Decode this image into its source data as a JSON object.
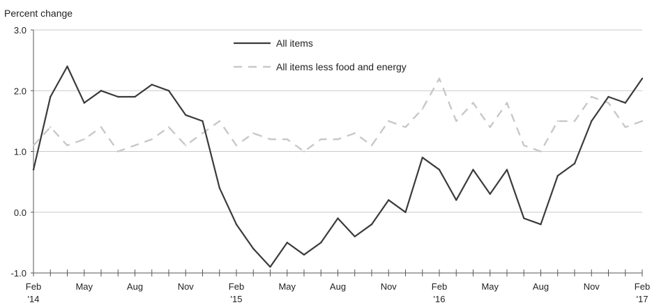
{
  "chart_data": {
    "type": "line",
    "title": "",
    "ylabel": "Percent change",
    "xlabel": "",
    "ylim": [
      -1.0,
      3.0
    ],
    "yticks": [
      "3.0",
      "2.0",
      "1.0",
      "0.0",
      "-1.0"
    ],
    "ytick_values": [
      3.0,
      2.0,
      1.0,
      0.0,
      -1.0
    ],
    "xtick_labels": [
      {
        "index": 0,
        "month": "Feb",
        "year": "'14"
      },
      {
        "index": 3,
        "month": "May",
        "year": ""
      },
      {
        "index": 6,
        "month": "Aug",
        "year": ""
      },
      {
        "index": 9,
        "month": "Nov",
        "year": ""
      },
      {
        "index": 12,
        "month": "Feb",
        "year": "'15"
      },
      {
        "index": 15,
        "month": "May",
        "year": ""
      },
      {
        "index": 18,
        "month": "Aug",
        "year": ""
      },
      {
        "index": 21,
        "month": "Nov",
        "year": ""
      },
      {
        "index": 24,
        "month": "Feb",
        "year": "'16"
      },
      {
        "index": 27,
        "month": "May",
        "year": ""
      },
      {
        "index": 30,
        "month": "Aug",
        "year": ""
      },
      {
        "index": 33,
        "month": "Nov",
        "year": ""
      },
      {
        "index": 36,
        "month": "Feb",
        "year": "'17"
      }
    ],
    "x": [
      "Feb 2014",
      "Mar 2014",
      "Apr 2014",
      "May 2014",
      "Jun 2014",
      "Jul 2014",
      "Aug 2014",
      "Sep 2014",
      "Oct 2014",
      "Nov 2014",
      "Dec 2014",
      "Jan 2015",
      "Feb 2015",
      "Mar 2015",
      "Apr 2015",
      "May 2015",
      "Jun 2015",
      "Jul 2015",
      "Aug 2015",
      "Sep 2015",
      "Oct 2015",
      "Nov 2015",
      "Dec 2015",
      "Jan 2016",
      "Feb 2016",
      "Mar 2016",
      "Apr 2016",
      "May 2016",
      "Jun 2016",
      "Jul 2016",
      "Aug 2016",
      "Sep 2016",
      "Oct 2016",
      "Nov 2016",
      "Dec 2016",
      "Jan 2017",
      "Feb 2017"
    ],
    "grid": true,
    "legend_position": "top-center",
    "series": [
      {
        "name": "All items",
        "style": "solid",
        "color": "#3a3a3a",
        "values": [
          0.7,
          1.9,
          2.4,
          1.8,
          2.0,
          1.9,
          1.9,
          2.1,
          2.0,
          1.6,
          1.5,
          0.4,
          -0.2,
          -0.6,
          -0.9,
          -0.5,
          -0.7,
          -0.5,
          -0.1,
          -0.4,
          -0.2,
          0.2,
          0.0,
          0.9,
          0.7,
          0.2,
          0.7,
          0.3,
          0.7,
          -0.1,
          -0.2,
          0.6,
          0.8,
          1.5,
          1.9,
          1.8,
          2.2
        ]
      },
      {
        "name": "All items less food and energy",
        "style": "dashed",
        "color": "#c8c8c8",
        "values": [
          1.1,
          1.4,
          1.1,
          1.2,
          1.4,
          1.0,
          1.1,
          1.2,
          1.4,
          1.1,
          1.3,
          1.5,
          1.1,
          1.3,
          1.2,
          1.2,
          1.0,
          1.2,
          1.2,
          1.3,
          1.1,
          1.5,
          1.4,
          1.7,
          2.2,
          1.5,
          1.8,
          1.4,
          1.8,
          1.1,
          1.0,
          1.5,
          1.5,
          1.9,
          1.8,
          1.4,
          1.5
        ]
      }
    ]
  }
}
